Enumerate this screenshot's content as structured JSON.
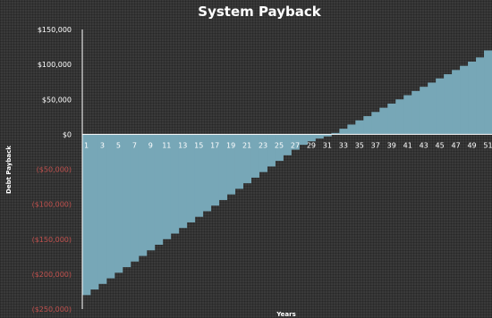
{
  "chart_data": {
    "type": "bar",
    "title": "System Payback",
    "xlabel": "Years",
    "ylabel": "Debt Payback",
    "x": [
      1,
      2,
      3,
      4,
      5,
      6,
      7,
      8,
      9,
      10,
      11,
      12,
      13,
      14,
      15,
      16,
      17,
      18,
      19,
      20,
      21,
      22,
      23,
      24,
      25,
      26,
      27,
      28,
      29,
      30,
      31,
      32,
      33,
      34,
      35,
      36,
      37,
      38,
      39,
      40,
      41,
      42,
      43,
      44,
      45,
      46,
      47,
      48,
      49,
      50,
      51
    ],
    "x_tick_labels": [
      "1",
      "3",
      "5",
      "7",
      "9",
      "11",
      "13",
      "15",
      "17",
      "19",
      "21",
      "23",
      "25",
      "27",
      "29",
      "31",
      "33",
      "35",
      "37",
      "39",
      "41",
      "43",
      "45",
      "47",
      "49",
      "51"
    ],
    "series": [
      {
        "values": [
          -230000,
          -222000,
          -214000,
          -206000,
          -198000,
          -190000,
          -182000,
          -174000,
          -166000,
          -158000,
          -150000,
          -142000,
          -134000,
          -126000,
          -118000,
          -110000,
          -102000,
          -94000,
          -86000,
          -78000,
          -70000,
          -62000,
          -54000,
          -46000,
          -38000,
          -30000,
          -22000,
          -15000,
          -10000,
          -6000,
          -3000,
          2000,
          8000,
          14000,
          20000,
          26000,
          32000,
          38000,
          44000,
          50000,
          56000,
          62000,
          68000,
          74000,
          80000,
          86000,
          92000,
          98000,
          104000,
          110000,
          120000
        ]
      }
    ],
    "ylim": [
      -250000,
      150000
    ],
    "y_ticks": [
      {
        "value": 150000,
        "label": "$150,000"
      },
      {
        "value": 100000,
        "label": "$100,000"
      },
      {
        "value": 50000,
        "label": "$50,000"
      },
      {
        "value": 0,
        "label": "$0"
      },
      {
        "value": -50000,
        "label": "($50,000)"
      },
      {
        "value": -100000,
        "label": "($100,000)"
      },
      {
        "value": -150000,
        "label": "($150,000)"
      },
      {
        "value": -200000,
        "label": "($200,000)"
      },
      {
        "value": -250000,
        "label": "($250,000)"
      }
    ],
    "colors": {
      "bar": "#77a7b7",
      "positive_tick": "#ffffff",
      "negative_tick": "#c0504d",
      "axis": "#ffffff"
    },
    "grid": false,
    "legend": "none"
  }
}
